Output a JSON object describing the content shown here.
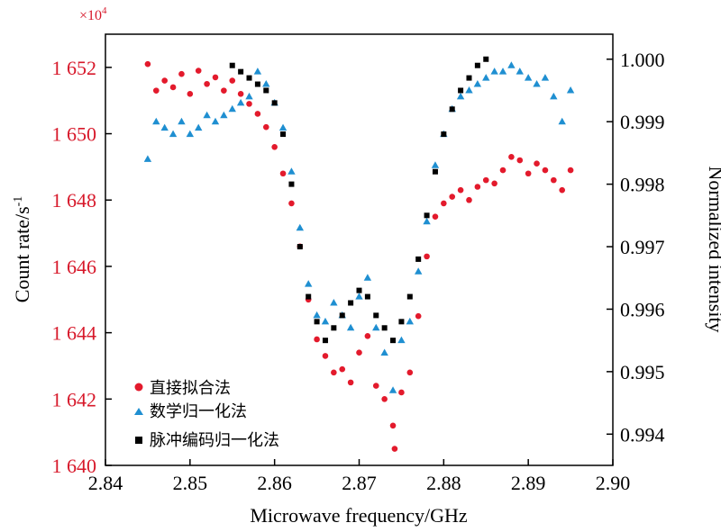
{
  "chart_data": {
    "type": "scatter",
    "xlabel": "Microwave frequency/GHz",
    "ylabel_left": "Count rate/s",
    "ylabel_left_superscript": "-1",
    "ylabel_right": "Normalized intensity",
    "left_multiplier": "×10",
    "left_multiplier_exp": "4",
    "xlim": [
      2.84,
      2.9
    ],
    "ylim_left": [
      1640,
      1653
    ],
    "ylim_right": [
      0.9935,
      1.0004
    ],
    "x_ticks": [
      "2.84",
      "2.85",
      "2.86",
      "2.87",
      "2.88",
      "2.89",
      "2.90"
    ],
    "x_tick_values": [
      2.84,
      2.85,
      2.86,
      2.87,
      2.88,
      2.89,
      2.9
    ],
    "left_ticks": [
      "1 640",
      "1 642",
      "1 644",
      "1 646",
      "1 648",
      "1 650",
      "1 652"
    ],
    "left_tick_values": [
      1640,
      1642,
      1644,
      1646,
      1648,
      1650,
      1652
    ],
    "right_ticks": [
      "0.994",
      "0.995",
      "0.996",
      "0.997",
      "0.998",
      "0.999",
      "1.000"
    ],
    "right_tick_values": [
      0.994,
      0.995,
      0.996,
      0.997,
      0.998,
      0.999,
      1.0
    ],
    "left_axis_color": "#d7182a",
    "legend_position": "bottom-left",
    "series": [
      {
        "name": "直接拟合法",
        "marker": "circle",
        "color": "#e31a2c",
        "axis": "left",
        "points": [
          [
            2.845,
            1652.1
          ],
          [
            2.846,
            1651.3
          ],
          [
            2.847,
            1651.6
          ],
          [
            2.848,
            1651.4
          ],
          [
            2.849,
            1651.8
          ],
          [
            2.85,
            1651.2
          ],
          [
            2.851,
            1651.9
          ],
          [
            2.852,
            1651.5
          ],
          [
            2.853,
            1651.7
          ],
          [
            2.854,
            1651.3
          ],
          [
            2.855,
            1651.6
          ],
          [
            2.856,
            1651.2
          ],
          [
            2.857,
            1650.9
          ],
          [
            2.858,
            1650.6
          ],
          [
            2.859,
            1650.2
          ],
          [
            2.86,
            1649.6
          ],
          [
            2.861,
            1648.8
          ],
          [
            2.862,
            1647.9
          ],
          [
            2.863,
            1646.6
          ],
          [
            2.864,
            1645.0
          ],
          [
            2.865,
            1643.8
          ],
          [
            2.866,
            1643.3
          ],
          [
            2.867,
            1642.8
          ],
          [
            2.868,
            1642.9
          ],
          [
            2.869,
            1642.5
          ],
          [
            2.87,
            1643.4
          ],
          [
            2.871,
            1643.9
          ],
          [
            2.872,
            1642.4
          ],
          [
            2.873,
            1642.0
          ],
          [
            2.874,
            1641.2
          ],
          [
            2.8742,
            1640.5
          ],
          [
            2.875,
            1642.2
          ],
          [
            2.876,
            1642.8
          ],
          [
            2.877,
            1644.5
          ],
          [
            2.878,
            1646.3
          ],
          [
            2.879,
            1647.5
          ],
          [
            2.88,
            1647.9
          ],
          [
            2.881,
            1648.1
          ],
          [
            2.882,
            1648.3
          ],
          [
            2.883,
            1648.0
          ],
          [
            2.884,
            1648.4
          ],
          [
            2.885,
            1648.6
          ],
          [
            2.886,
            1648.5
          ],
          [
            2.887,
            1648.9
          ],
          [
            2.888,
            1649.3
          ],
          [
            2.889,
            1649.2
          ],
          [
            2.89,
            1648.8
          ],
          [
            2.891,
            1649.1
          ],
          [
            2.892,
            1648.9
          ],
          [
            2.893,
            1648.6
          ],
          [
            2.894,
            1648.3
          ],
          [
            2.895,
            1648.9
          ]
        ]
      },
      {
        "name": "数学归一化法",
        "marker": "triangle",
        "color": "#1f8fd1",
        "axis": "right",
        "points": [
          [
            2.845,
            0.9984
          ],
          [
            2.846,
            0.999
          ],
          [
            2.847,
            0.9989
          ],
          [
            2.848,
            0.9988
          ],
          [
            2.849,
            0.999
          ],
          [
            2.85,
            0.9988
          ],
          [
            2.851,
            0.9989
          ],
          [
            2.852,
            0.9991
          ],
          [
            2.853,
            0.999
          ],
          [
            2.854,
            0.9991
          ],
          [
            2.855,
            0.9992
          ],
          [
            2.856,
            0.9993
          ],
          [
            2.857,
            0.9994
          ],
          [
            2.858,
            0.9998
          ],
          [
            2.859,
            0.9996
          ],
          [
            2.86,
            0.9993
          ],
          [
            2.861,
            0.9989
          ],
          [
            2.862,
            0.9982
          ],
          [
            2.863,
            0.9973
          ],
          [
            2.864,
            0.9964
          ],
          [
            2.865,
            0.9959
          ],
          [
            2.866,
            0.9958
          ],
          [
            2.867,
            0.9961
          ],
          [
            2.868,
            0.9959
          ],
          [
            2.869,
            0.9957
          ],
          [
            2.87,
            0.9962
          ],
          [
            2.871,
            0.9965
          ],
          [
            2.872,
            0.9957
          ],
          [
            2.873,
            0.9953
          ],
          [
            2.874,
            0.9947
          ],
          [
            2.875,
            0.9955
          ],
          [
            2.876,
            0.9958
          ],
          [
            2.877,
            0.9966
          ],
          [
            2.878,
            0.9974
          ],
          [
            2.879,
            0.9983
          ],
          [
            2.88,
            0.9988
          ],
          [
            2.881,
            0.9992
          ],
          [
            2.882,
            0.9994
          ],
          [
            2.883,
            0.9995
          ],
          [
            2.884,
            0.9996
          ],
          [
            2.885,
            0.9997
          ],
          [
            2.886,
            0.9998
          ],
          [
            2.887,
            0.9998
          ],
          [
            2.888,
            0.9999
          ],
          [
            2.889,
            0.9998
          ],
          [
            2.89,
            0.9997
          ],
          [
            2.891,
            0.9996
          ],
          [
            2.892,
            0.9997
          ],
          [
            2.893,
            0.9994
          ],
          [
            2.894,
            0.999
          ],
          [
            2.895,
            0.9995
          ]
        ]
      },
      {
        "name": "脉冲编码归一化法",
        "marker": "square",
        "color": "#000000",
        "axis": "right",
        "points": [
          [
            2.855,
            0.9999
          ],
          [
            2.856,
            0.9998
          ],
          [
            2.857,
            0.9997
          ],
          [
            2.858,
            0.9996
          ],
          [
            2.859,
            0.9995
          ],
          [
            2.86,
            0.9993
          ],
          [
            2.861,
            0.9988
          ],
          [
            2.862,
            0.998
          ],
          [
            2.863,
            0.997
          ],
          [
            2.864,
            0.9962
          ],
          [
            2.865,
            0.9958
          ],
          [
            2.866,
            0.9955
          ],
          [
            2.867,
            0.9957
          ],
          [
            2.868,
            0.9959
          ],
          [
            2.869,
            0.9961
          ],
          [
            2.87,
            0.9963
          ],
          [
            2.871,
            0.9962
          ],
          [
            2.872,
            0.9959
          ],
          [
            2.873,
            0.9957
          ],
          [
            2.874,
            0.9955
          ],
          [
            2.875,
            0.9958
          ],
          [
            2.876,
            0.9962
          ],
          [
            2.877,
            0.9968
          ],
          [
            2.878,
            0.9975
          ],
          [
            2.879,
            0.9982
          ],
          [
            2.88,
            0.9988
          ],
          [
            2.881,
            0.9992
          ],
          [
            2.882,
            0.9995
          ],
          [
            2.883,
            0.9997
          ],
          [
            2.884,
            0.9999
          ],
          [
            2.885,
            1.0
          ]
        ]
      }
    ]
  }
}
